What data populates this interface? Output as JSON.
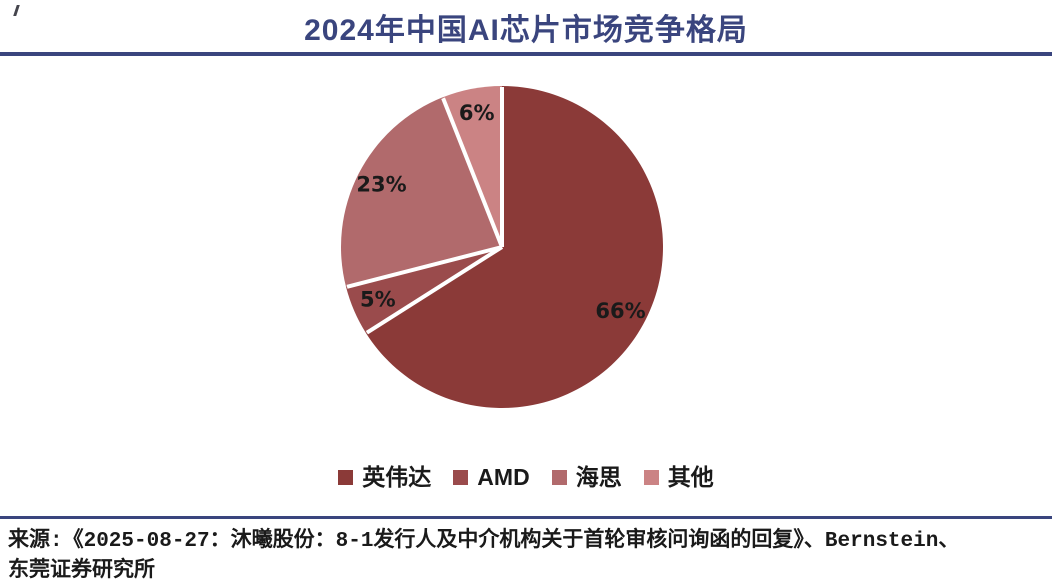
{
  "page": {
    "title": "2024年中国AI芯片市场竞争格局"
  },
  "source": {
    "line1": "来源:《2025-08-27：沐曦股份：8-1发行人及中介机构关于首轮审核问询函的回复》、Bernstein、",
    "line2": "东莞证券研究所"
  },
  "chart_data": {
    "type": "pie",
    "title": "2024年中国AI芯片市场竞争格局",
    "labels": [
      "英伟达",
      "AMD",
      "海思",
      "其他"
    ],
    "values": [
      66,
      5,
      23,
      6
    ],
    "value_labels": [
      "66%",
      "5%",
      "23%",
      "6%"
    ],
    "colors": [
      "#8B3A38",
      "#9A4B4C",
      "#B16A6C",
      "#CB8384"
    ],
    "start_angle_deg": 0,
    "direction": "clockwise",
    "divider_color": "#FFFFFF",
    "label_color": "#1A1A1A",
    "legend_position": "bottom"
  },
  "theme": {
    "title_color": "#3A457E",
    "rule_color": "#3A457E",
    "text_color": "#1A1A1A",
    "background": "#FFFFFF"
  }
}
